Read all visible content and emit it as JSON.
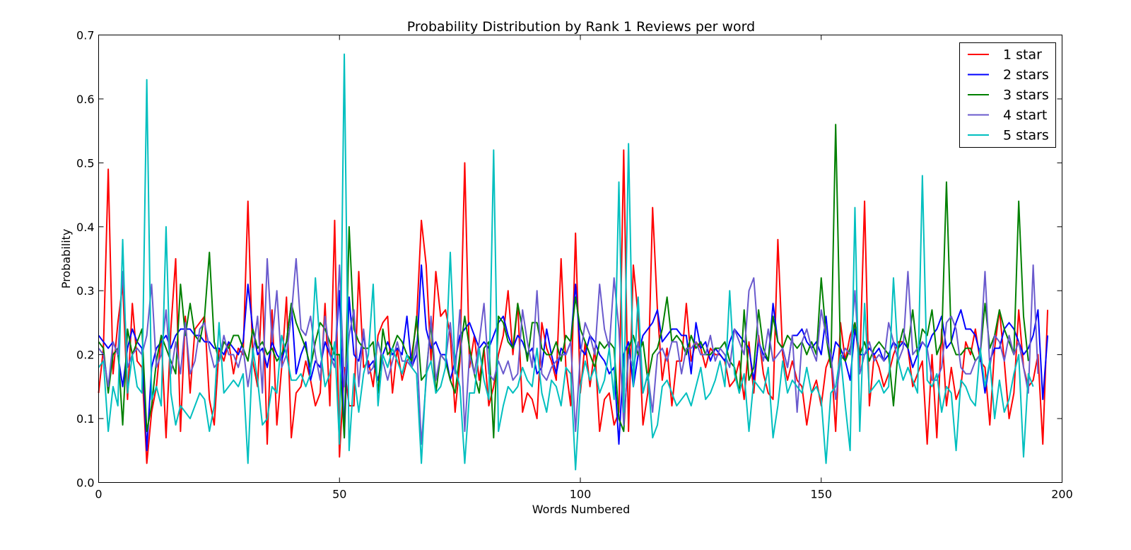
{
  "chart_data": {
    "type": "line",
    "title": "Probability Distribution by Rank 1 Reviews per word",
    "xlabel": "Words Numbered",
    "ylabel": "Probability",
    "xlim": [
      0,
      200
    ],
    "ylim": [
      0.0,
      0.7
    ],
    "xticks": [
      0,
      50,
      100,
      150,
      200
    ],
    "yticks": [
      0.0,
      0.1,
      0.2,
      0.3,
      0.4,
      0.5,
      0.6,
      0.7
    ],
    "xtick_labels": [
      "0",
      "50",
      "100",
      "150",
      "200"
    ],
    "ytick_labels": [
      "0.0",
      "0.1",
      "0.2",
      "0.3",
      "0.4",
      "0.5",
      "0.6",
      "0.7"
    ],
    "legend": {
      "placement": "top-right"
    },
    "grid": false,
    "series": [
      {
        "name": "1 star",
        "color": "#ff0000",
        "values": [
          0.14,
          0.21,
          0.49,
          0.17,
          0.25,
          0.31,
          0.13,
          0.28,
          0.19,
          0.18,
          0.03,
          0.11,
          0.15,
          0.23,
          0.07,
          0.24,
          0.35,
          0.08,
          0.26,
          0.14,
          0.24,
          0.25,
          0.26,
          0.13,
          0.09,
          0.21,
          0.19,
          0.22,
          0.17,
          0.21,
          0.2,
          0.44,
          0.19,
          0.15,
          0.31,
          0.06,
          0.27,
          0.09,
          0.18,
          0.29,
          0.07,
          0.14,
          0.15,
          0.19,
          0.16,
          0.12,
          0.14,
          0.28,
          0.12,
          0.41,
          0.04,
          0.18,
          0.12,
          0.12,
          0.33,
          0.18,
          0.19,
          0.15,
          0.23,
          0.25,
          0.26,
          0.14,
          0.21,
          0.16,
          0.19,
          0.2,
          0.25,
          0.41,
          0.34,
          0.19,
          0.33,
          0.26,
          0.27,
          0.23,
          0.11,
          0.19,
          0.5,
          0.18,
          0.23,
          0.16,
          0.21,
          0.12,
          0.15,
          0.2,
          0.23,
          0.3,
          0.2,
          0.28,
          0.11,
          0.14,
          0.13,
          0.1,
          0.25,
          0.21,
          0.19,
          0.16,
          0.35,
          0.18,
          0.12,
          0.39,
          0.14,
          0.22,
          0.15,
          0.21,
          0.08,
          0.13,
          0.14,
          0.09,
          0.11,
          0.52,
          0.08,
          0.34,
          0.26,
          0.09,
          0.14,
          0.43,
          0.27,
          0.16,
          0.21,
          0.12,
          0.19,
          0.19,
          0.28,
          0.19,
          0.22,
          0.21,
          0.18,
          0.21,
          0.2,
          0.2,
          0.19,
          0.15,
          0.16,
          0.19,
          0.13,
          0.22,
          0.14,
          0.23,
          0.17,
          0.14,
          0.13,
          0.38,
          0.2,
          0.16,
          0.19,
          0.16,
          0.15,
          0.09,
          0.14,
          0.16,
          0.12,
          0.18,
          0.2,
          0.08,
          0.25,
          0.19,
          0.23,
          0.25,
          0.18,
          0.44,
          0.12,
          0.2,
          0.18,
          0.15,
          0.17,
          0.2,
          0.22,
          0.22,
          0.21,
          0.15,
          0.17,
          0.19,
          0.06,
          0.2,
          0.07,
          0.24,
          0.12,
          0.18,
          0.13,
          0.15,
          0.22,
          0.2,
          0.24,
          0.19,
          0.18,
          0.09,
          0.21,
          0.27,
          0.19,
          0.1,
          0.14,
          0.27,
          0.18,
          0.15,
          0.16,
          0.2,
          0.06,
          0.27
        ]
      },
      {
        "name": "2 stars",
        "color": "#0000ff",
        "values": [
          0.23,
          0.22,
          0.21,
          0.22,
          0.2,
          0.15,
          0.21,
          0.24,
          0.22,
          0.21,
          0.05,
          0.18,
          0.21,
          0.22,
          0.23,
          0.21,
          0.23,
          0.24,
          0.24,
          0.24,
          0.23,
          0.23,
          0.22,
          0.22,
          0.21,
          0.21,
          0.2,
          0.22,
          0.21,
          0.2,
          0.22,
          0.31,
          0.24,
          0.2,
          0.21,
          0.18,
          0.22,
          0.2,
          0.19,
          0.22,
          0.28,
          0.17,
          0.2,
          0.22,
          0.16,
          0.19,
          0.18,
          0.22,
          0.2,
          0.19,
          0.3,
          0.07,
          0.29,
          0.2,
          0.19,
          0.23,
          0.18,
          0.19,
          0.16,
          0.2,
          0.22,
          0.2,
          0.21,
          0.2,
          0.26,
          0.18,
          0.2,
          0.34,
          0.24,
          0.21,
          0.22,
          0.2,
          0.2,
          0.16,
          0.19,
          0.23,
          0.24,
          0.25,
          0.23,
          0.21,
          0.22,
          0.21,
          0.23,
          0.25,
          0.26,
          0.23,
          0.21,
          0.23,
          0.22,
          0.2,
          0.21,
          0.17,
          0.18,
          0.24,
          0.2,
          0.17,
          0.21,
          0.2,
          0.22,
          0.31,
          0.21,
          0.2,
          0.23,
          0.22,
          0.2,
          0.19,
          0.17,
          0.18,
          0.06,
          0.2,
          0.22,
          0.15,
          0.2,
          0.23,
          0.24,
          0.25,
          0.27,
          0.22,
          0.23,
          0.24,
          0.24,
          0.23,
          0.23,
          0.17,
          0.25,
          0.21,
          0.22,
          0.19,
          0.21,
          0.2,
          0.19,
          0.22,
          0.24,
          0.23,
          0.22,
          0.21,
          0.16,
          0.22,
          0.2,
          0.19,
          0.28,
          0.22,
          0.21,
          0.18,
          0.23,
          0.23,
          0.24,
          0.22,
          0.21,
          0.22,
          0.2,
          0.26,
          0.18,
          0.22,
          0.21,
          0.19,
          0.16,
          0.24,
          0.2,
          0.2,
          0.21,
          0.2,
          0.21,
          0.19,
          0.2,
          0.22,
          0.21,
          0.22,
          0.21,
          0.18,
          0.2,
          0.22,
          0.21,
          0.23,
          0.24,
          0.26,
          0.21,
          0.22,
          0.25,
          0.27,
          0.24,
          0.24,
          0.23,
          0.2,
          0.14,
          0.19,
          0.21,
          0.21,
          0.24,
          0.25,
          0.24,
          0.22,
          0.2,
          0.21,
          0.23,
          0.27,
          0.13,
          0.23
        ]
      },
      {
        "name": "3 stars",
        "color": "#008000",
        "values": [
          0.22,
          0.21,
          0.14,
          0.2,
          0.21,
          0.09,
          0.24,
          0.2,
          0.22,
          0.24,
          0.08,
          0.12,
          0.19,
          0.23,
          0.21,
          0.19,
          0.17,
          0.31,
          0.23,
          0.28,
          0.23,
          0.22,
          0.26,
          0.36,
          0.22,
          0.19,
          0.22,
          0.21,
          0.23,
          0.23,
          0.21,
          0.19,
          0.24,
          0.21,
          0.22,
          0.2,
          0.21,
          0.19,
          0.2,
          0.22,
          0.28,
          0.25,
          0.23,
          0.21,
          0.18,
          0.22,
          0.25,
          0.24,
          0.22,
          0.2,
          0.2,
          0.07,
          0.4,
          0.24,
          0.22,
          0.21,
          0.21,
          0.22,
          0.14,
          0.24,
          0.2,
          0.21,
          0.23,
          0.22,
          0.2,
          0.19,
          0.26,
          0.16,
          0.17,
          0.25,
          0.14,
          0.2,
          0.19,
          0.16,
          0.14,
          0.2,
          0.26,
          0.21,
          0.17,
          0.14,
          0.21,
          0.22,
          0.07,
          0.26,
          0.25,
          0.22,
          0.21,
          0.28,
          0.24,
          0.19,
          0.25,
          0.25,
          0.21,
          0.2,
          0.2,
          0.22,
          0.19,
          0.23,
          0.22,
          0.29,
          0.24,
          0.22,
          0.2,
          0.18,
          0.22,
          0.21,
          0.22,
          0.21,
          0.1,
          0.08,
          0.21,
          0.23,
          0.2,
          0.22,
          0.16,
          0.2,
          0.21,
          0.24,
          0.29,
          0.22,
          0.23,
          0.22,
          0.2,
          0.23,
          0.21,
          0.22,
          0.2,
          0.2,
          0.21,
          0.21,
          0.22,
          0.19,
          0.18,
          0.14,
          0.27,
          0.16,
          0.18,
          0.27,
          0.21,
          0.19,
          0.26,
          0.22,
          0.21,
          0.23,
          0.22,
          0.21,
          0.22,
          0.2,
          0.22,
          0.2,
          0.32,
          0.23,
          0.18,
          0.56,
          0.2,
          0.19,
          0.21,
          0.25,
          0.2,
          0.22,
          0.19,
          0.21,
          0.22,
          0.21,
          0.2,
          0.12,
          0.21,
          0.24,
          0.21,
          0.27,
          0.2,
          0.24,
          0.23,
          0.27,
          0.2,
          0.22,
          0.47,
          0.22,
          0.2,
          0.2,
          0.21,
          0.21,
          0.19,
          0.2,
          0.28,
          0.21,
          0.23,
          0.27,
          0.24,
          0.22,
          0.2,
          0.44,
          0.26,
          0.19
        ]
      },
      {
        "name": "4 start",
        "color": "#6a5acd",
        "values": [
          0.21,
          0.2,
          0.15,
          0.22,
          0.2,
          0.33,
          0.18,
          0.2,
          0.21,
          0.2,
          0.23,
          0.31,
          0.18,
          0.2,
          0.27,
          0.17,
          0.22,
          0.17,
          0.25,
          0.17,
          0.19,
          0.24,
          0.25,
          0.21,
          0.18,
          0.19,
          0.23,
          0.2,
          0.2,
          0.18,
          0.21,
          0.15,
          0.2,
          0.26,
          0.14,
          0.35,
          0.22,
          0.3,
          0.18,
          0.2,
          0.26,
          0.35,
          0.24,
          0.23,
          0.26,
          0.2,
          0.16,
          0.26,
          0.2,
          0.18,
          0.34,
          0.15,
          0.23,
          0.27,
          0.15,
          0.24,
          0.17,
          0.18,
          0.22,
          0.19,
          0.16,
          0.19,
          0.22,
          0.19,
          0.19,
          0.18,
          0.22,
          0.06,
          0.16,
          0.26,
          0.16,
          0.2,
          0.19,
          0.25,
          0.17,
          0.27,
          0.08,
          0.2,
          0.17,
          0.22,
          0.28,
          0.17,
          0.16,
          0.19,
          0.17,
          0.19,
          0.16,
          0.17,
          0.27,
          0.22,
          0.18,
          0.3,
          0.17,
          0.16,
          0.18,
          0.19,
          0.2,
          0.2,
          0.22,
          0.08,
          0.2,
          0.25,
          0.23,
          0.2,
          0.31,
          0.24,
          0.21,
          0.32,
          0.24,
          0.09,
          0.2,
          0.18,
          0.22,
          0.14,
          0.17,
          0.11,
          0.2,
          0.21,
          0.19,
          0.22,
          0.22,
          0.17,
          0.21,
          0.21,
          0.22,
          0.2,
          0.2,
          0.23,
          0.19,
          0.21,
          0.2,
          0.18,
          0.24,
          0.22,
          0.2,
          0.3,
          0.32,
          0.22,
          0.19,
          0.24,
          0.19,
          0.2,
          0.21,
          0.18,
          0.23,
          0.11,
          0.22,
          0.24,
          0.21,
          0.19,
          0.27,
          0.23,
          0.2,
          0.13,
          0.19,
          0.21,
          0.2,
          0.3,
          0.17,
          0.2,
          0.22,
          0.19,
          0.2,
          0.19,
          0.25,
          0.22,
          0.19,
          0.21,
          0.33,
          0.2,
          0.21,
          0.22,
          0.21,
          0.16,
          0.16,
          0.18,
          0.25,
          0.26,
          0.24,
          0.18,
          0.17,
          0.17,
          0.19,
          0.2,
          0.33,
          0.18,
          0.23,
          0.22,
          0.19,
          0.23,
          0.2,
          0.22,
          0.18,
          0.14,
          0.34,
          0.17
        ]
      },
      {
        "name": "5 stars",
        "color": "#00bfbf",
        "values": [
          0.18,
          0.19,
          0.08,
          0.15,
          0.12,
          0.38,
          0.14,
          0.2,
          0.15,
          0.14,
          0.63,
          0.13,
          0.15,
          0.12,
          0.4,
          0.14,
          0.09,
          0.12,
          0.11,
          0.1,
          0.12,
          0.14,
          0.13,
          0.08,
          0.12,
          0.25,
          0.14,
          0.15,
          0.16,
          0.15,
          0.17,
          0.03,
          0.21,
          0.16,
          0.09,
          0.1,
          0.15,
          0.14,
          0.23,
          0.2,
          0.16,
          0.16,
          0.17,
          0.15,
          0.17,
          0.32,
          0.21,
          0.15,
          0.17,
          0.22,
          0.06,
          0.67,
          0.05,
          0.17,
          0.11,
          0.17,
          0.2,
          0.31,
          0.12,
          0.2,
          0.18,
          0.21,
          0.19,
          0.17,
          0.2,
          0.18,
          0.17,
          0.03,
          0.17,
          0.19,
          0.14,
          0.15,
          0.18,
          0.36,
          0.18,
          0.15,
          0.03,
          0.14,
          0.14,
          0.21,
          0.16,
          0.13,
          0.52,
          0.08,
          0.12,
          0.15,
          0.14,
          0.15,
          0.18,
          0.16,
          0.15,
          0.21,
          0.14,
          0.11,
          0.16,
          0.15,
          0.12,
          0.18,
          0.17,
          0.02,
          0.15,
          0.19,
          0.16,
          0.18,
          0.14,
          0.16,
          0.21,
          0.13,
          0.47,
          0.11,
          0.53,
          0.15,
          0.29,
          0.14,
          0.17,
          0.07,
          0.09,
          0.15,
          0.16,
          0.14,
          0.12,
          0.13,
          0.14,
          0.12,
          0.15,
          0.18,
          0.13,
          0.14,
          0.16,
          0.19,
          0.15,
          0.3,
          0.17,
          0.14,
          0.17,
          0.08,
          0.16,
          0.15,
          0.14,
          0.18,
          0.07,
          0.12,
          0.19,
          0.14,
          0.16,
          0.15,
          0.14,
          0.18,
          0.14,
          0.15,
          0.13,
          0.03,
          0.14,
          0.15,
          0.2,
          0.12,
          0.05,
          0.43,
          0.08,
          0.28,
          0.14,
          0.15,
          0.16,
          0.14,
          0.15,
          0.32,
          0.19,
          0.16,
          0.18,
          0.16,
          0.14,
          0.48,
          0.16,
          0.15,
          0.17,
          0.11,
          0.15,
          0.14,
          0.05,
          0.16,
          0.15,
          0.13,
          0.12,
          0.21,
          0.15,
          0.19,
          0.1,
          0.16,
          0.11,
          0.13,
          0.17,
          0.2,
          0.04,
          0.17,
          0.15
        ]
      }
    ]
  }
}
